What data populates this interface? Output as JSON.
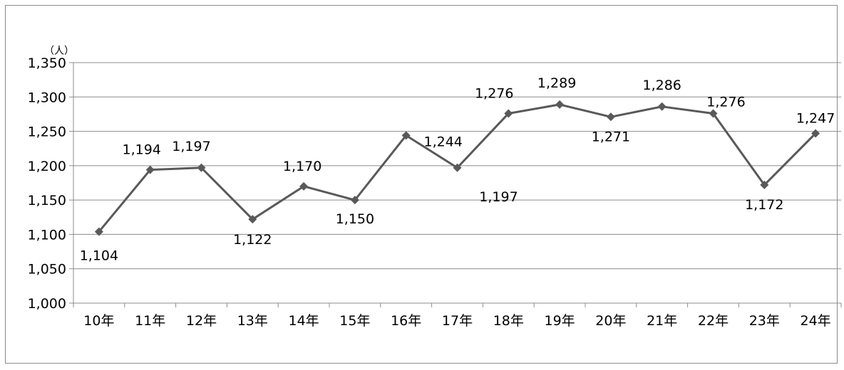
{
  "chart_data": {
    "type": "line",
    "unit": "（人）",
    "categories": [
      "10年",
      "11年",
      "12年",
      "13年",
      "14年",
      "15年",
      "16年",
      "17年",
      "18年",
      "19年",
      "20年",
      "21年",
      "22年",
      "23年",
      "24年"
    ],
    "values": [
      1104,
      1194,
      1197,
      1122,
      1170,
      1150,
      1244,
      1197,
      1276,
      1289,
      1271,
      1286,
      1276,
      1172,
      1247
    ],
    "data_labels": [
      "1,104",
      "1,194",
      "1,197",
      "1,122",
      "1,170",
      "1,150",
      "1,244",
      "1,197",
      "1,276",
      "1,289",
      "1,271",
      "1,286",
      "1,276",
      "1,172",
      "1,247"
    ],
    "ylim": [
      1000,
      1350
    ],
    "yticks": [
      1000,
      1050,
      1100,
      1150,
      1200,
      1250,
      1300,
      1350
    ],
    "ytick_labels": [
      "1,000",
      "1,050",
      "1,100",
      "1,150",
      "1,200",
      "1,250",
      "1,300",
      "1,350"
    ],
    "grid": true,
    "legend": "none",
    "line_color": "#595959",
    "grid_color": "#8c8c8c"
  }
}
